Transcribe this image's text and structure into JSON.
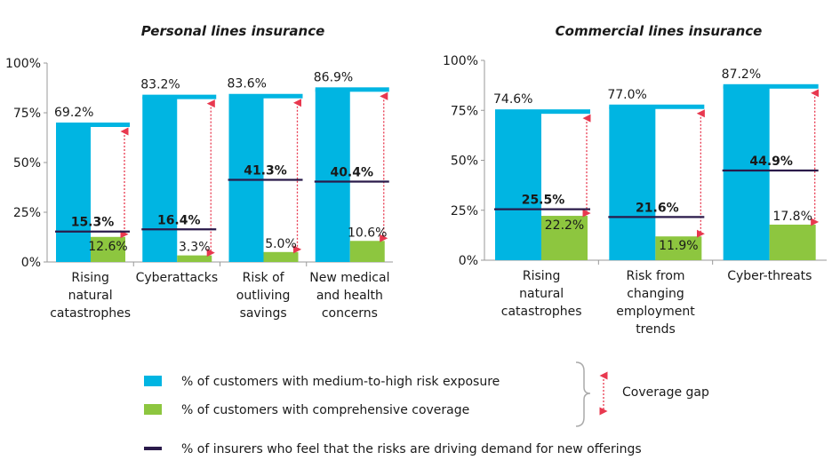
{
  "colors": {
    "exposure": "#00b5e2",
    "coverage": "#8dc63f",
    "insurers": "#2a1a4a",
    "gap_arrow": "#e8384f",
    "axis": "#999999"
  },
  "chart_data": [
    {
      "type": "bar",
      "title": "Personal lines insurance",
      "ylim": [
        0,
        100
      ],
      "yticks": [
        "0%",
        "25%",
        "50%",
        "75%",
        "100%"
      ],
      "categories": [
        [
          "Rising",
          "natural",
          "catastrophes"
        ],
        [
          "Cyberattacks"
        ],
        [
          "Risk of",
          "outliving",
          "savings"
        ],
        [
          "New medical",
          "and health",
          "concerns"
        ]
      ],
      "series": [
        {
          "name": "% of customers with medium-to-high risk exposure",
          "kind": "bar",
          "values": [
            69.2,
            83.2,
            83.6,
            86.9
          ],
          "labels": [
            "69.2%",
            "83.2%",
            "83.6%",
            "86.9%"
          ]
        },
        {
          "name": "% of customers with comprehensive coverage",
          "kind": "bar",
          "values": [
            12.6,
            3.3,
            5.0,
            10.6
          ],
          "labels": [
            "12.6%",
            "3.3%",
            "5.0%",
            "10.6%"
          ]
        },
        {
          "name": "% of insurers who feel that the risks are driving demand for new offerings",
          "kind": "line-marker",
          "values": [
            15.3,
            16.4,
            41.3,
            40.4
          ],
          "labels": [
            "15.3%",
            "16.4%",
            "41.3%",
            "40.4%"
          ]
        }
      ]
    },
    {
      "type": "bar",
      "title": "Commercial lines insurance",
      "ylim": [
        0,
        100
      ],
      "yticks": [
        "0%",
        "25%",
        "50%",
        "75%",
        "100%"
      ],
      "categories": [
        [
          "Rising",
          "natural",
          "catastrophes"
        ],
        [
          "Risk from",
          "changing",
          "employment",
          "trends"
        ],
        [
          "Cyber-threats"
        ]
      ],
      "series": [
        {
          "name": "% of customers with medium-to-high risk exposure",
          "kind": "bar",
          "values": [
            74.6,
            77.0,
            87.2
          ],
          "labels": [
            "74.6%",
            "77.0%",
            "87.2%"
          ]
        },
        {
          "name": "% of customers with comprehensive coverage",
          "kind": "bar",
          "values": [
            22.2,
            11.9,
            17.8
          ],
          "labels": [
            "22.2%",
            "11.9%",
            "17.8%"
          ]
        },
        {
          "name": "% of insurers who feel that the risks are driving demand for new offerings",
          "kind": "line-marker",
          "values": [
            25.5,
            21.6,
            44.9
          ],
          "labels": [
            "25.5%",
            "21.6%",
            "44.9%"
          ]
        }
      ]
    }
  ],
  "legend": {
    "exposure": "% of customers with medium-to-high risk exposure",
    "coverage": "% of customers with comprehensive coverage",
    "insurers": "% of insurers who feel that the risks are driving demand for new offerings",
    "gap": "Coverage gap"
  }
}
